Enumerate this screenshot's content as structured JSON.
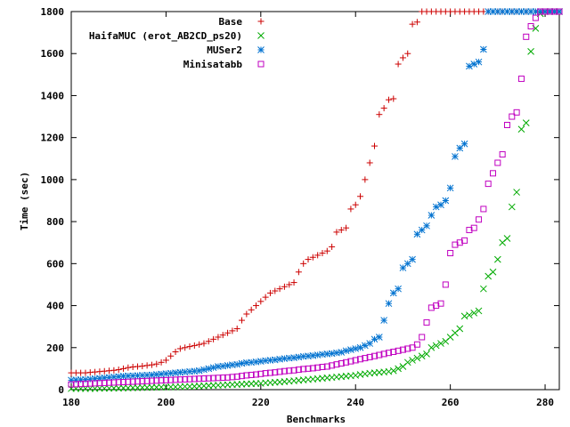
{
  "chart_data": {
    "type": "scatter",
    "title": "",
    "xlabel": "Benchmarks",
    "ylabel": "Time (sec)",
    "xlim": [
      180,
      283
    ],
    "ylim": [
      0,
      1800
    ],
    "xticks": [
      180,
      200,
      220,
      240,
      260,
      280
    ],
    "yticks": [
      0,
      200,
      400,
      600,
      800,
      1000,
      1200,
      1400,
      1600,
      1800
    ],
    "grid": false,
    "legend_position": "top-right",
    "series": [
      {
        "name": "Base",
        "marker": "plus",
        "color": "#cc0000",
        "x": [
          180,
          181,
          182,
          183,
          184,
          185,
          186,
          187,
          188,
          189,
          190,
          191,
          192,
          193,
          194,
          195,
          196,
          197,
          198,
          199,
          200,
          201,
          202,
          203,
          204,
          205,
          206,
          207,
          208,
          209,
          210,
          211,
          212,
          213,
          214,
          215,
          216,
          217,
          218,
          219,
          220,
          221,
          222,
          223,
          224,
          225,
          226,
          227,
          228,
          229,
          230,
          231,
          232,
          233,
          234,
          235,
          236,
          237,
          238,
          239,
          240,
          241,
          242,
          243,
          244,
          245,
          246,
          247,
          248,
          249,
          250,
          251,
          252,
          253,
          254,
          255,
          256,
          257,
          258,
          259,
          260,
          261,
          262,
          263,
          264,
          265,
          266,
          267,
          268,
          269,
          270,
          271,
          272,
          273,
          274,
          275,
          276,
          277,
          278,
          279,
          280,
          281,
          282,
          283
        ],
        "y": [
          80,
          80,
          80,
          80,
          82,
          84,
          86,
          88,
          90,
          92,
          95,
          100,
          105,
          108,
          110,
          112,
          115,
          118,
          122,
          130,
          140,
          160,
          180,
          195,
          200,
          205,
          210,
          215,
          220,
          230,
          240,
          250,
          260,
          270,
          280,
          290,
          330,
          360,
          380,
          400,
          420,
          440,
          460,
          470,
          480,
          490,
          500,
          510,
          560,
          600,
          620,
          630,
          640,
          650,
          660,
          680,
          750,
          760,
          770,
          860,
          880,
          920,
          1000,
          1080,
          1160,
          1310,
          1340,
          1380,
          1385,
          1550,
          1580,
          1600,
          1740,
          1750,
          1800,
          1800,
          1800,
          1800,
          1800,
          1800,
          1800,
          1800,
          1800,
          1800,
          1800,
          1800,
          1800,
          1800,
          1800,
          1800,
          1800,
          1800,
          1800,
          1800,
          1800,
          1800,
          1800,
          1800,
          1800,
          1800,
          1800,
          1800,
          1800,
          1800
        ]
      },
      {
        "name": "HaifaMUC (erot_AB2CD_ps20)",
        "marker": "cross",
        "color": "#00aa00",
        "x": [
          180,
          181,
          182,
          183,
          184,
          185,
          186,
          187,
          188,
          189,
          190,
          191,
          192,
          193,
          194,
          195,
          196,
          197,
          198,
          199,
          200,
          201,
          202,
          203,
          204,
          205,
          206,
          207,
          208,
          209,
          210,
          211,
          212,
          213,
          214,
          215,
          216,
          217,
          218,
          219,
          220,
          221,
          222,
          223,
          224,
          225,
          226,
          227,
          228,
          229,
          230,
          231,
          232,
          233,
          234,
          235,
          236,
          237,
          238,
          239,
          240,
          241,
          242,
          243,
          244,
          245,
          246,
          247,
          248,
          249,
          250,
          251,
          252,
          253,
          254,
          255,
          256,
          257,
          258,
          259,
          260,
          261,
          262,
          263,
          264,
          265,
          266,
          267,
          268,
          269,
          270,
          271,
          272,
          273,
          274,
          275,
          276,
          277,
          278,
          279,
          280,
          281,
          282,
          283
        ],
        "y": [
          5,
          5,
          5,
          5,
          5,
          5,
          6,
          6,
          6,
          7,
          7,
          8,
          8,
          9,
          9,
          10,
          10,
          11,
          11,
          12,
          12,
          13,
          13,
          14,
          15,
          15,
          16,
          17,
          18,
          19,
          20,
          21,
          22,
          23,
          24,
          25,
          26,
          27,
          28,
          29,
          30,
          32,
          33,
          35,
          36,
          38,
          40,
          42,
          44,
          46,
          48,
          50,
          52,
          54,
          56,
          58,
          60,
          62,
          64,
          66,
          68,
          72,
          75,
          78,
          80,
          82,
          84,
          86,
          90,
          100,
          110,
          130,
          140,
          150,
          160,
          170,
          200,
          210,
          220,
          230,
          250,
          270,
          290,
          350,
          355,
          365,
          375,
          480,
          540,
          560,
          620,
          700,
          720,
          870,
          940,
          1240,
          1270,
          1610,
          1720,
          1790,
          1800,
          1800,
          1800,
          1800
        ]
      },
      {
        "name": "MUSer2",
        "marker": "star",
        "color": "#0072d0",
        "x": [
          180,
          181,
          182,
          183,
          184,
          185,
          186,
          187,
          188,
          189,
          190,
          191,
          192,
          193,
          194,
          195,
          196,
          197,
          198,
          199,
          200,
          201,
          202,
          203,
          204,
          205,
          206,
          207,
          208,
          209,
          210,
          211,
          212,
          213,
          214,
          215,
          216,
          217,
          218,
          219,
          220,
          221,
          222,
          223,
          224,
          225,
          226,
          227,
          228,
          229,
          230,
          231,
          232,
          233,
          234,
          235,
          236,
          237,
          238,
          239,
          240,
          241,
          242,
          243,
          244,
          245,
          246,
          247,
          248,
          249,
          250,
          251,
          252,
          253,
          254,
          255,
          256,
          257,
          258,
          259,
          260,
          261,
          262,
          263,
          264,
          265,
          266,
          267,
          268,
          269,
          270,
          271,
          272,
          273,
          274,
          275,
          276,
          277,
          278,
          279,
          280,
          281,
          282,
          283
        ],
        "y": [
          45,
          46,
          47,
          48,
          50,
          52,
          54,
          56,
          58,
          60,
          62,
          64,
          65,
          66,
          67,
          68,
          69,
          70,
          72,
          74,
          76,
          78,
          80,
          82,
          84,
          86,
          88,
          90,
          95,
          100,
          105,
          110,
          112,
          115,
          118,
          120,
          125,
          128,
          130,
          132,
          135,
          138,
          140,
          142,
          145,
          148,
          150,
          152,
          155,
          158,
          160,
          162,
          165,
          168,
          170,
          172,
          175,
          178,
          185,
          190,
          195,
          200,
          210,
          220,
          240,
          250,
          330,
          410,
          460,
          480,
          580,
          600,
          620,
          740,
          760,
          780,
          830,
          870,
          880,
          900,
          960,
          1110,
          1150,
          1170,
          1540,
          1550,
          1560,
          1620,
          1800,
          1800,
          1800,
          1800,
          1800,
          1800,
          1800,
          1800,
          1800,
          1800,
          1800,
          1800,
          1800,
          1800,
          1800,
          1800
        ]
      },
      {
        "name": "Minisatabb",
        "marker": "square",
        "color": "#c000c0",
        "x": [
          180,
          181,
          182,
          183,
          184,
          185,
          186,
          187,
          188,
          189,
          190,
          191,
          192,
          193,
          194,
          195,
          196,
          197,
          198,
          199,
          200,
          201,
          202,
          203,
          204,
          205,
          206,
          207,
          208,
          209,
          210,
          211,
          212,
          213,
          214,
          215,
          216,
          217,
          218,
          219,
          220,
          221,
          222,
          223,
          224,
          225,
          226,
          227,
          228,
          229,
          230,
          231,
          232,
          233,
          234,
          235,
          236,
          237,
          238,
          239,
          240,
          241,
          242,
          243,
          244,
          245,
          246,
          247,
          248,
          249,
          250,
          251,
          252,
          253,
          254,
          255,
          256,
          257,
          258,
          259,
          260,
          261,
          262,
          263,
          264,
          265,
          266,
          267,
          268,
          269,
          270,
          271,
          272,
          273,
          274,
          275,
          276,
          277,
          278,
          279,
          280,
          281,
          282,
          283
        ],
        "y": [
          25,
          26,
          27,
          28,
          29,
          30,
          31,
          32,
          33,
          34,
          35,
          36,
          37,
          38,
          39,
          40,
          41,
          42,
          43,
          44,
          45,
          46,
          47,
          48,
          49,
          50,
          51,
          52,
          53,
          54,
          55,
          56,
          57,
          58,
          60,
          62,
          65,
          68,
          70,
          72,
          75,
          78,
          80,
          82,
          85,
          88,
          90,
          92,
          95,
          98,
          100,
          102,
          105,
          108,
          110,
          115,
          120,
          125,
          130,
          135,
          140,
          145,
          150,
          155,
          160,
          165,
          170,
          175,
          180,
          185,
          190,
          195,
          200,
          215,
          250,
          320,
          390,
          400,
          410,
          500,
          650,
          690,
          700,
          710,
          760,
          770,
          810,
          860,
          980,
          1030,
          1080,
          1120,
          1260,
          1300,
          1320,
          1480,
          1680,
          1730,
          1770,
          1800,
          1800,
          1800,
          1800,
          1800
        ]
      }
    ]
  }
}
